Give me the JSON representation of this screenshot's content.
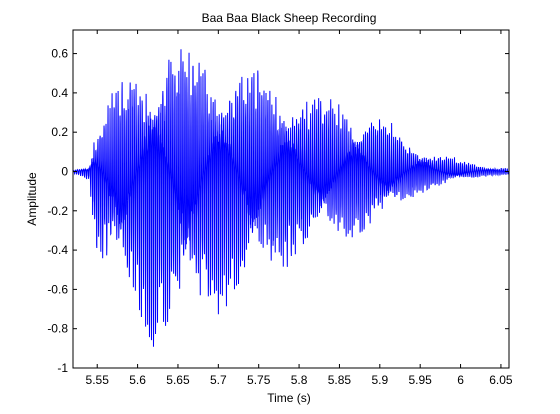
{
  "chart_data": {
    "type": "line",
    "title": "Baa Baa Black Sheep Recording",
    "xlabel": "Time (s)",
    "ylabel": "Amplitude",
    "xlim": [
      5.52,
      6.06
    ],
    "ylim": [
      -1.0,
      0.72
    ],
    "x_ticks": [
      5.55,
      5.6,
      5.65,
      5.7,
      5.75,
      5.8,
      5.85,
      5.9,
      5.95,
      6.0,
      6.05
    ],
    "x_tick_labels": [
      "5.55",
      "5.6",
      "5.65",
      "5.7",
      "5.75",
      "5.8",
      "5.85",
      "5.9",
      "5.95",
      "6",
      "6.05"
    ],
    "y_ticks": [
      -1.0,
      -0.8,
      -0.6,
      -0.4,
      -0.2,
      0.0,
      0.2,
      0.4,
      0.6
    ],
    "y_tick_labels": [
      "-1",
      "-0.8",
      "-0.6",
      "-0.4",
      "-0.2",
      "0",
      "0.2",
      "0.4",
      "0.6"
    ],
    "grid": false,
    "line_color": "#0000ff",
    "series": [
      {
        "x": [
          5.52,
          5.54,
          5.545,
          5.55,
          5.56,
          5.58,
          5.6,
          5.62,
          5.63,
          5.64,
          5.65,
          5.7,
          5.75,
          5.8,
          5.85,
          5.9,
          5.95,
          6.0,
          6.03,
          6.06
        ],
        "upper": [
          0.01,
          0.03,
          0.2,
          0.28,
          0.35,
          0.5,
          0.6,
          0.66,
          0.72,
          0.72,
          0.7,
          0.62,
          0.55,
          0.45,
          0.4,
          0.3,
          0.15,
          0.06,
          0.03,
          0.02
        ],
        "lower": [
          -0.01,
          -0.05,
          -0.35,
          -0.5,
          -0.55,
          -0.72,
          -0.9,
          -0.97,
          -0.98,
          -0.96,
          -0.9,
          -0.78,
          -0.62,
          -0.45,
          -0.38,
          -0.3,
          -0.12,
          -0.05,
          -0.03,
          -0.02
        ]
      }
    ]
  }
}
